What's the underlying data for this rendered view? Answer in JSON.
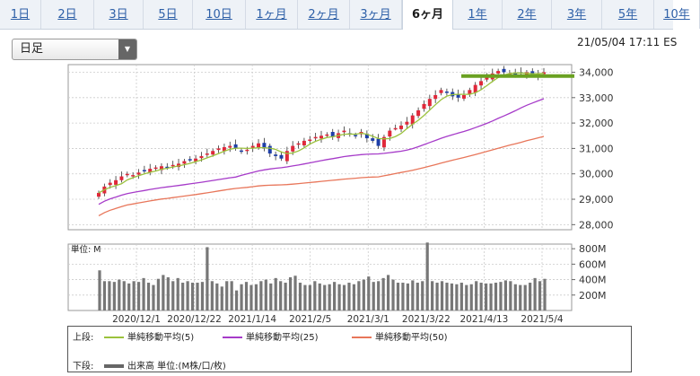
{
  "tabs": [
    "1日",
    "2日",
    "3日",
    "5日",
    "10日",
    "1ヶ月",
    "2ヶ月",
    "3ヶ月",
    "6ヶ月",
    "1年",
    "2年",
    "3年",
    "5年",
    "10年"
  ],
  "active_tab": "6ヶ月",
  "select": {
    "value": "日足"
  },
  "timestamp": "21/05/04 17:11 ES",
  "volume_unit_label": "単位: M",
  "legend": {
    "upper_label": "上段:",
    "lower_label": "下段:",
    "ma5": "単純移動平均(5)",
    "ma25": "単純移動平均(25)",
    "ma50": "単純移動平均(50)",
    "volume": "出来高 単位:(M株/口/枚)"
  },
  "chart_data": [
    {
      "type": "candlestick",
      "y_ticks": [
        "28,000",
        "29,000",
        "30,000",
        "31,000",
        "32,000",
        "33,000",
        "34,000"
      ],
      "ylim": [
        27800,
        34300
      ],
      "x_ticks": [
        "2020/12/1",
        "2020/12/22",
        "2021/1/14",
        "2021/2/5",
        "2021/3/1",
        "2021/3/22",
        "2021/4/13",
        "2021/5/4"
      ],
      "colors": {
        "up": "#e0283a",
        "down": "#1e3fa8",
        "ma5": "#9bc23c",
        "ma25": "#a63bc9",
        "ma50": "#e8765a",
        "highlight": "#6aa121"
      },
      "highlight_level": 33850,
      "close_series": [
        29250,
        29500,
        29650,
        29750,
        29900,
        30000,
        29950,
        30050,
        30100,
        30200,
        30250,
        30300,
        30250,
        30350,
        30400,
        30500,
        30550,
        30600,
        30700,
        30800,
        30900,
        31000,
        31050,
        31100,
        31000,
        30900,
        30950,
        31100,
        31200,
        31000,
        30800,
        30700,
        30600,
        30900,
        31100,
        31200,
        31300,
        31350,
        31450,
        31500,
        31550,
        31450,
        31600,
        31700,
        31550,
        31500,
        31650,
        31400,
        31300,
        31100,
        31450,
        31700,
        31800,
        31900,
        32050,
        32300,
        32500,
        32750,
        32950,
        33100,
        33300,
        33200,
        33050,
        33000,
        33100,
        33300,
        33500,
        33650,
        33800,
        33950,
        34050,
        34000,
        33950,
        33900,
        33950,
        34000,
        33900,
        33950,
        34000
      ]
    },
    {
      "type": "bar",
      "y_ticks": [
        "200M",
        "400M",
        "600M",
        "800M"
      ],
      "ylim": [
        0,
        860
      ],
      "values": [
        520,
        380,
        380,
        370,
        400,
        380,
        350,
        380,
        370,
        420,
        360,
        330,
        410,
        460,
        430,
        380,
        420,
        360,
        380,
        360,
        360,
        370,
        820,
        380,
        350,
        310,
        380,
        380,
        260,
        340,
        370,
        330,
        340,
        380,
        400,
        350,
        420,
        380,
        360,
        430,
        450,
        360,
        330,
        330,
        380,
        350,
        330,
        340,
        370,
        340,
        330,
        360,
        340,
        380,
        400,
        440,
        370,
        380,
        420,
        460,
        400,
        360,
        360,
        350,
        390,
        360,
        380,
        880,
        380,
        360,
        380,
        360,
        350,
        340,
        360,
        330,
        340,
        380,
        360,
        350,
        350,
        360,
        370,
        390,
        380,
        340,
        330,
        330,
        360,
        420,
        380,
        410
      ]
    }
  ]
}
